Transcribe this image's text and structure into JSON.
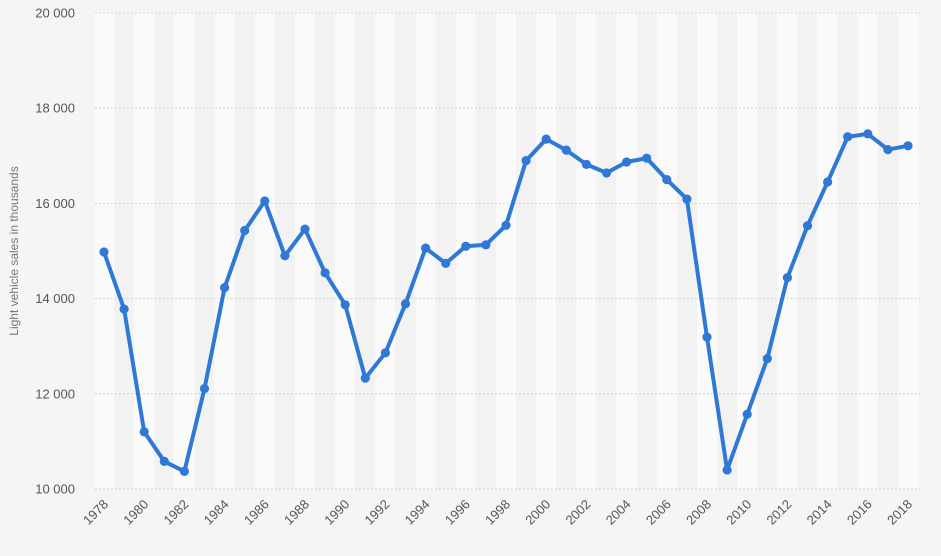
{
  "chart_data": {
    "type": "line",
    "title": "",
    "xlabel": "",
    "ylabel": "Light vehicle sales in thousands",
    "ylim": [
      10000,
      20000
    ],
    "y_ticks": [
      {
        "value": 10000,
        "label": "10 000"
      },
      {
        "value": 12000,
        "label": "12 000"
      },
      {
        "value": 14000,
        "label": "14 000"
      },
      {
        "value": 16000,
        "label": "16 000"
      },
      {
        "value": 18000,
        "label": "18 000"
      },
      {
        "value": 20000,
        "label": "20 000"
      }
    ],
    "x_ticks": [
      "1978",
      "1980",
      "1982",
      "1984",
      "1986",
      "1988",
      "1990",
      "1992",
      "1994",
      "1996",
      "1998",
      "2000",
      "2002",
      "2004",
      "2006",
      "2008",
      "2010",
      "2012",
      "2014",
      "2016",
      "2018"
    ],
    "grid": true,
    "legend": "none",
    "series_color": "#2f78d6",
    "band_colors": [
      "#fafafa",
      "#f2f2f2"
    ],
    "x": [
      1978,
      1979,
      1980,
      1981,
      1982,
      1983,
      1984,
      1985,
      1986,
      1987,
      1988,
      1989,
      1990,
      1991,
      1992,
      1993,
      1994,
      1995,
      1996,
      1997,
      1998,
      1999,
      2000,
      2001,
      2002,
      2003,
      2004,
      2005,
      2006,
      2007,
      2008,
      2009,
      2010,
      2011,
      2012,
      2013,
      2014,
      2015,
      2016,
      2017,
      2018
    ],
    "series": [
      {
        "values": [
          14980,
          13780,
          11200,
          10580,
          10370,
          12110,
          14230,
          15430,
          16050,
          14900,
          15460,
          14540,
          13870,
          12330,
          12860,
          13890,
          15060,
          14740,
          15100,
          15130,
          15540,
          16900,
          17350,
          17120,
          16820,
          16640,
          16870,
          16950,
          16500,
          16090,
          13190,
          10400,
          11570,
          12740,
          14440,
          15530,
          16450,
          17400,
          17460,
          17130,
          17210
        ]
      }
    ]
  }
}
